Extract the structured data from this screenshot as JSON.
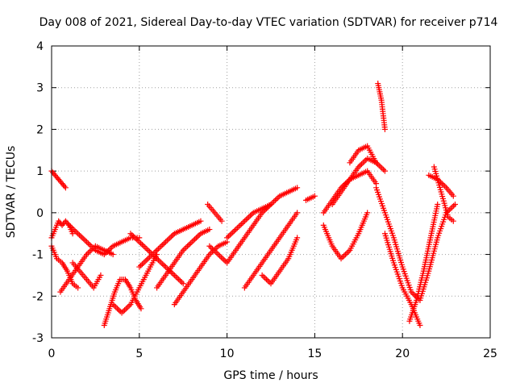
{
  "chart_data": {
    "type": "scatter",
    "title": "Day 008 of 2021, Sidereal Day-to-day VTEC variation (SDTVAR) for receiver p714",
    "xlabel": "GPS time / hours",
    "ylabel": "SDTVAR / TECUs",
    "xlim": [
      0,
      25
    ],
    "ylim": [
      -3,
      4
    ],
    "xticks": [
      "0",
      "5",
      "10",
      "15",
      "20",
      "25"
    ],
    "yticks": [
      "-3",
      "-2",
      "-1",
      "0",
      "1",
      "2",
      "3",
      "4"
    ],
    "grid": true,
    "marker": "+",
    "color": "#ff0000",
    "series": [
      {
        "name": "s1",
        "x": [
          0.0,
          0.2,
          0.4,
          0.6,
          0.8
        ],
        "y": [
          1.0,
          0.9,
          0.8,
          0.7,
          0.6
        ]
      },
      {
        "name": "s2",
        "x": [
          0.0,
          0.2,
          0.4,
          0.6,
          0.8,
          1.0,
          1.2
        ],
        "y": [
          -0.6,
          -0.4,
          -0.2,
          -0.3,
          -0.2,
          -0.3,
          -0.5
        ]
      },
      {
        "name": "s3",
        "x": [
          0.0,
          0.3,
          0.6,
          0.9,
          1.2,
          1.5
        ],
        "y": [
          -0.8,
          -1.1,
          -1.2,
          -1.4,
          -1.7,
          -1.8
        ]
      },
      {
        "name": "s4",
        "x": [
          0.5,
          1.0,
          1.5,
          2.0,
          2.5,
          3.0,
          3.5
        ],
        "y": [
          -1.9,
          -1.6,
          -1.3,
          -1.0,
          -0.8,
          -0.9,
          -1.0
        ]
      },
      {
        "name": "s5",
        "x": [
          1.0,
          1.5,
          2.0,
          2.5,
          3.0,
          3.5,
          4.0,
          4.5,
          5.0
        ],
        "y": [
          -0.3,
          -0.5,
          -0.7,
          -0.9,
          -1.0,
          -0.8,
          -0.7,
          -0.6,
          -0.6
        ]
      },
      {
        "name": "s6",
        "x": [
          1.2,
          1.6,
          2.0,
          2.4,
          2.8
        ],
        "y": [
          -1.2,
          -1.4,
          -1.6,
          -1.8,
          -1.5
        ]
      },
      {
        "name": "s7",
        "x": [
          3.0,
          3.3,
          3.6,
          3.9,
          4.2,
          4.5,
          4.8,
          5.1
        ],
        "y": [
          -2.7,
          -2.3,
          -1.9,
          -1.6,
          -1.6,
          -1.8,
          -2.1,
          -2.3
        ]
      },
      {
        "name": "s8",
        "x": [
          3.5,
          4.0,
          4.5,
          5.0,
          5.5,
          6.0
        ],
        "y": [
          -2.2,
          -2.4,
          -2.2,
          -1.8,
          -1.4,
          -1.0
        ]
      },
      {
        "name": "s9",
        "x": [
          4.5,
          5.0,
          5.5,
          6.0,
          6.5,
          7.0,
          7.5
        ],
        "y": [
          -0.5,
          -0.7,
          -0.9,
          -1.1,
          -1.3,
          -1.5,
          -1.7
        ]
      },
      {
        "name": "s10",
        "x": [
          5.0,
          5.5,
          6.0,
          6.5,
          7.0,
          7.5,
          8.0,
          8.5
        ],
        "y": [
          -1.3,
          -1.1,
          -0.9,
          -0.7,
          -0.5,
          -0.4,
          -0.3,
          -0.2
        ]
      },
      {
        "name": "s11",
        "x": [
          6.0,
          6.5,
          7.0,
          7.5,
          8.0,
          8.5,
          9.0
        ],
        "y": [
          -1.8,
          -1.5,
          -1.2,
          -0.9,
          -0.7,
          -0.5,
          -0.4
        ]
      },
      {
        "name": "s12",
        "x": [
          7.0,
          7.5,
          8.0,
          8.5,
          9.0,
          9.5,
          10.0
        ],
        "y": [
          -2.2,
          -1.9,
          -1.6,
          -1.3,
          -1.0,
          -0.8,
          -0.7
        ]
      },
      {
        "name": "s13",
        "x": [
          8.9,
          9.3,
          9.7
        ],
        "y": [
          0.2,
          0.0,
          -0.2
        ]
      },
      {
        "name": "s14",
        "x": [
          9.0,
          9.5,
          10.0,
          10.5,
          11.0,
          11.5,
          12.0,
          12.5,
          13.0,
          13.5,
          14.0
        ],
        "y": [
          -0.8,
          -1.0,
          -1.2,
          -0.9,
          -0.6,
          -0.3,
          0.0,
          0.2,
          0.4,
          0.5,
          0.6
        ]
      },
      {
        "name": "s15",
        "x": [
          10.0,
          10.5,
          11.0,
          11.5,
          12.0,
          12.5
        ],
        "y": [
          -0.6,
          -0.4,
          -0.2,
          0.0,
          0.1,
          0.2
        ]
      },
      {
        "name": "s16",
        "x": [
          11.0,
          11.5,
          12.0,
          12.5,
          13.0,
          13.5,
          14.0
        ],
        "y": [
          -1.8,
          -1.5,
          -1.2,
          -0.9,
          -0.6,
          -0.3,
          0.0
        ]
      },
      {
        "name": "s17",
        "x": [
          12.0,
          12.5,
          13.0,
          13.5,
          14.0
        ],
        "y": [
          -1.5,
          -1.7,
          -1.4,
          -1.1,
          -0.6
        ]
      },
      {
        "name": "s18",
        "x": [
          14.5,
          15.0
        ],
        "y": [
          0.3,
          0.4
        ]
      },
      {
        "name": "s19",
        "x": [
          15.5,
          16.0,
          16.5,
          17.0,
          17.5,
          18.0,
          18.5
        ],
        "y": [
          0.0,
          0.3,
          0.6,
          0.8,
          0.9,
          1.0,
          0.7
        ]
      },
      {
        "name": "s20",
        "x": [
          16.0,
          16.5,
          17.0,
          17.5,
          18.0,
          18.5,
          19.0
        ],
        "y": [
          0.2,
          0.5,
          0.8,
          1.1,
          1.3,
          1.2,
          1.0
        ]
      },
      {
        "name": "s21",
        "x": [
          15.5,
          16.0,
          16.5,
          17.0,
          17.5,
          18.0
        ],
        "y": [
          -0.3,
          -0.8,
          -1.1,
          -0.9,
          -0.5,
          0.0
        ]
      },
      {
        "name": "s22",
        "x": [
          17.0,
          17.5,
          18.0,
          18.5
        ],
        "y": [
          1.2,
          1.5,
          1.6,
          1.2
        ]
      },
      {
        "name": "s23",
        "x": [
          18.6,
          18.8,
          19.0
        ],
        "y": [
          3.1,
          2.7,
          2.0
        ]
      },
      {
        "name": "s24",
        "x": [
          18.5,
          19.0,
          19.5,
          20.0,
          20.5,
          21.0,
          21.5,
          22.0,
          22.5,
          23.0
        ],
        "y": [
          0.6,
          0.0,
          -0.6,
          -1.3,
          -1.9,
          -2.1,
          -1.4,
          -0.6,
          0.0,
          0.2
        ]
      },
      {
        "name": "s25",
        "x": [
          19.0,
          19.5,
          20.0,
          20.5,
          21.0
        ],
        "y": [
          -0.5,
          -1.2,
          -1.8,
          -2.2,
          -2.7
        ]
      },
      {
        "name": "s26",
        "x": [
          20.4,
          20.8,
          21.2,
          21.6,
          22.0
        ],
        "y": [
          -2.6,
          -2.1,
          -1.4,
          -0.6,
          0.2
        ]
      },
      {
        "name": "s27",
        "x": [
          21.5,
          22.0,
          22.5,
          22.9
        ],
        "y": [
          0.9,
          0.8,
          0.6,
          0.4
        ]
      },
      {
        "name": "s28",
        "x": [
          21.8,
          22.2,
          22.6,
          22.9
        ],
        "y": [
          1.1,
          0.5,
          -0.1,
          -0.2
        ]
      }
    ]
  }
}
